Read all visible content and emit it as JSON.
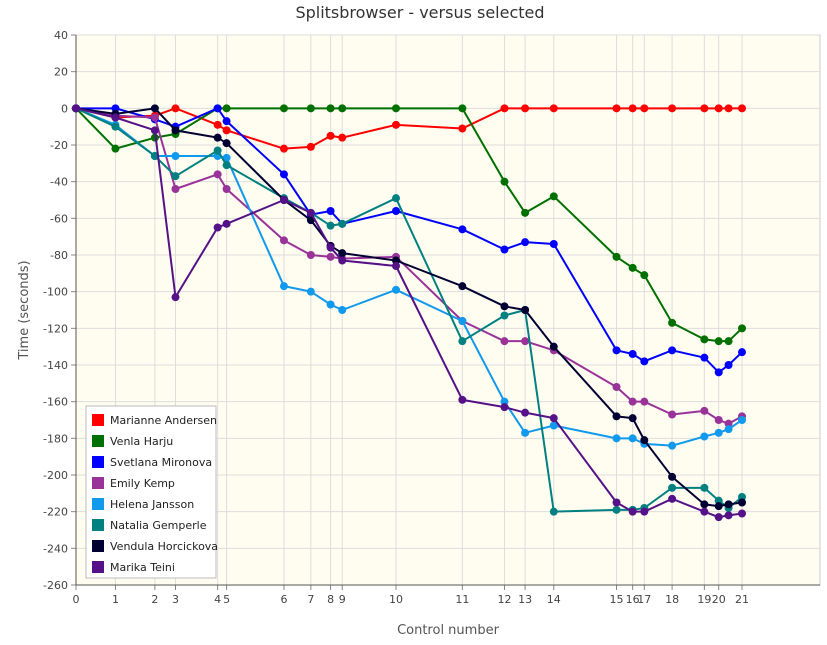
{
  "title": "Splitsbrowser - versus selected",
  "chart_data": {
    "type": "line",
    "title": "Splitsbrowser - versus selected",
    "xlabel": "Control number",
    "ylabel": "Time (seconds)",
    "xlim": [
      0,
      830
    ],
    "ylim": [
      -260,
      40
    ],
    "y_ticks": [
      40,
      20,
      0,
      -20,
      -40,
      -60,
      -80,
      -100,
      -120,
      -140,
      -160,
      -180,
      -200,
      -220,
      -240,
      -260
    ],
    "x_ticks": [
      {
        "label": "0",
        "x": 0
      },
      {
        "label": "1",
        "x": 44
      },
      {
        "label": "2",
        "x": 88
      },
      {
        "label": "3",
        "x": 111
      },
      {
        "label": "4",
        "x": 158
      },
      {
        "label": "5",
        "x": 168
      },
      {
        "label": "6",
        "x": 232
      },
      {
        "label": "7",
        "x": 262
      },
      {
        "label": "8",
        "x": 284
      },
      {
        "label": "9",
        "x": 297
      },
      {
        "label": "10",
        "x": 357
      },
      {
        "label": "11",
        "x": 431
      },
      {
        "label": "12",
        "x": 478
      },
      {
        "label": "13",
        "x": 501
      },
      {
        "label": "14",
        "x": 533
      },
      {
        "label": "15",
        "x": 603
      },
      {
        "label": "16",
        "x": 621
      },
      {
        "label": "17",
        "x": 634
      },
      {
        "label": "18",
        "x": 665
      },
      {
        "label": "19",
        "x": 701
      },
      {
        "label": "20",
        "x": 717
      },
      {
        "label": "21",
        "x": 743
      }
    ],
    "grid": true,
    "legend_position": "bottom-left",
    "background_color": "#fffdf0",
    "x": [
      0,
      44,
      88,
      111,
      158,
      168,
      232,
      262,
      284,
      297,
      357,
      431,
      478,
      501,
      533,
      603,
      621,
      634,
      665,
      701,
      717,
      728,
      743
    ],
    "series": [
      {
        "name": "Marianne Andersen",
        "color": "#ff0000",
        "values": [
          0,
          -5,
          -4,
          0,
          -9,
          -12,
          -22,
          -21,
          -15,
          -16,
          -9,
          -11,
          0,
          0,
          0,
          0,
          0,
          0,
          0,
          0,
          0,
          0,
          0
        ]
      },
      {
        "name": "Venla Harju",
        "color": "#007000",
        "values": [
          0,
          -22,
          -16,
          -14,
          0,
          0,
          0,
          0,
          0,
          0,
          0,
          0,
          -40,
          -57,
          -48,
          -81,
          -87,
          -91,
          -117,
          -126,
          -127,
          -127,
          -120
        ]
      },
      {
        "name": "Svetlana Mironova",
        "color": "#0000ff",
        "values": [
          0,
          0,
          -6,
          -10,
          0,
          -7,
          -36,
          -58,
          -56,
          -63,
          -56,
          -66,
          -77,
          -73,
          -74,
          -132,
          -134,
          -138,
          -132,
          -136,
          -144,
          -140,
          -133
        ]
      },
      {
        "name": "Emily Kemp",
        "color": "#993399",
        "values": [
          0,
          -4,
          -5,
          -44,
          -36,
          -44,
          -72,
          -80,
          -81,
          -82,
          -81,
          -116,
          -127,
          -127,
          -132,
          -152,
          -160,
          -160,
          -167,
          -165,
          -170,
          -172,
          -168
        ]
      },
      {
        "name": "Helena Jansson",
        "color": "#1199ee",
        "values": [
          0,
          -9,
          -26,
          -26,
          -26,
          -27,
          -97,
          -100,
          -107,
          -110,
          -99,
          -116,
          -160,
          -177,
          -173,
          -180,
          -180,
          -183,
          -184,
          -179,
          -177,
          -175,
          -170
        ]
      },
      {
        "name": "Natalia Gemperle",
        "color": "#008080",
        "values": [
          0,
          -10,
          -26,
          -37,
          -23,
          -31,
          -49,
          -57,
          -64,
          -63,
          -49,
          -127,
          -113,
          -110,
          -220,
          -219,
          -219,
          -218,
          -207,
          -207,
          -214,
          -218,
          -212
        ]
      },
      {
        "name": "Vendula Horcickova",
        "color": "#000033",
        "values": [
          0,
          -3,
          0,
          -12,
          -16,
          -19,
          -50,
          -61,
          -75,
          -79,
          -83,
          -97,
          -108,
          -110,
          -130,
          -168,
          -169,
          -181,
          -201,
          -216,
          -217,
          -216,
          -215
        ]
      },
      {
        "name": "Marika Teini",
        "color": "#551188",
        "values": [
          0,
          -5,
          -12,
          -103,
          -65,
          -63,
          -50,
          -57,
          -76,
          -83,
          -86,
          -159,
          -163,
          -166,
          -169,
          -215,
          -220,
          -220,
          -213,
          -220,
          -223,
          -222,
          -221
        ]
      }
    ]
  }
}
